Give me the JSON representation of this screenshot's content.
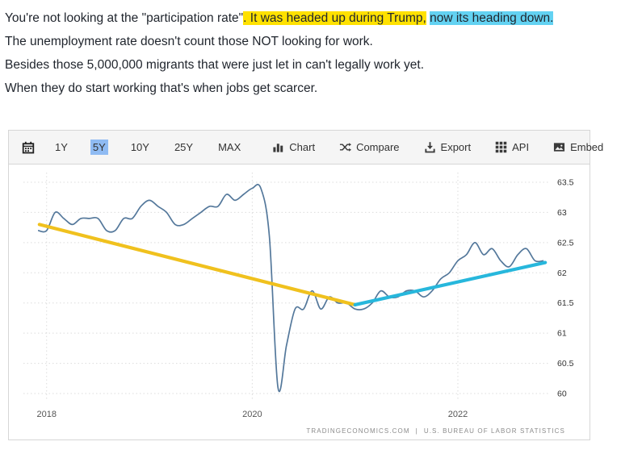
{
  "post": {
    "highlight_colors": {
      "yellow": "#ffe100",
      "cyan": "#63d2f2"
    },
    "lines": [
      {
        "segments": [
          {
            "text": "You're not looking at the \"participation rate\"",
            "highlight": "none"
          },
          {
            "text": ". It was headed up during Trump,",
            "highlight": "yellow"
          },
          {
            "text": " ",
            "highlight": "none"
          },
          {
            "text": "now its heading down.",
            "highlight": "cyan"
          }
        ]
      },
      {
        "segments": [
          {
            "text": "The unemployment rate doesn't count those NOT looking for work.",
            "highlight": "none"
          }
        ]
      },
      {
        "segments": [
          {
            "text": "Besides those 5,000,000 migrants that were just let in can't legally work yet.",
            "highlight": "none"
          }
        ]
      },
      {
        "segments": [
          {
            "text": "When they do start working that's when jobs get scarcer.",
            "highlight": "none"
          }
        ]
      }
    ]
  },
  "toolbar": {
    "calendar_icon": "calendar-icon",
    "ranges": [
      {
        "label": "1Y",
        "selected": false
      },
      {
        "label": "5Y",
        "selected": true
      },
      {
        "label": "10Y",
        "selected": false
      },
      {
        "label": "25Y",
        "selected": false
      },
      {
        "label": "MAX",
        "selected": false
      }
    ],
    "actions": [
      {
        "label": "Chart",
        "icon": "bar-chart-icon"
      },
      {
        "label": "Compare",
        "icon": "compare-icon"
      },
      {
        "label": "Export",
        "icon": "export-icon"
      },
      {
        "label": "API",
        "icon": "api-icon"
      },
      {
        "label": "Embed",
        "icon": "embed-icon"
      }
    ]
  },
  "attribution": {
    "source": "TRADINGECONOMICS.COM",
    "separator": "|",
    "agency": "U.S. BUREAU OF LABOR STATISTICS"
  },
  "chart_data": {
    "type": "line",
    "x_start": 2017.9167,
    "x_step": 0.0833333,
    "values": [
      62.7,
      62.7,
      63.0,
      62.9,
      62.8,
      62.9,
      62.9,
      62.9,
      62.7,
      62.7,
      62.9,
      62.9,
      63.1,
      63.2,
      63.1,
      63.0,
      62.8,
      62.8,
      62.9,
      63.0,
      63.1,
      63.1,
      63.3,
      63.2,
      63.3,
      63.4,
      63.4,
      62.6,
      60.1,
      60.8,
      61.4,
      61.4,
      61.7,
      61.4,
      61.6,
      61.5,
      61.5,
      61.4,
      61.4,
      61.5,
      61.7,
      61.6,
      61.6,
      61.7,
      61.7,
      61.6,
      61.7,
      61.9,
      62.0,
      62.2,
      62.3,
      62.5,
      62.3,
      62.4,
      62.2,
      62.1,
      62.3,
      62.4,
      62.2,
      62.2
    ],
    "x_ticks": [
      2018,
      2020,
      2022
    ],
    "y_ticks": [
      60,
      60.5,
      61,
      61.5,
      62,
      62.5,
      63,
      63.5
    ],
    "xlim": [
      2017.9,
      2022.88
    ],
    "ylim": [
      59.88,
      63.66
    ],
    "grid": true,
    "legend": "none",
    "line_color": "#54789b",
    "annotations": [
      {
        "name": "trend-line-down",
        "color": "#f0c11e",
        "x1": 2017.93,
        "y1": 62.8,
        "x2": 2021.0,
        "y2": 61.47,
        "width": 4.2
      },
      {
        "name": "trend-line-up",
        "color": "#27b7dc",
        "x1": 2021.0,
        "y1": 61.47,
        "x2": 2022.85,
        "y2": 62.17,
        "width": 4.2
      }
    ]
  }
}
